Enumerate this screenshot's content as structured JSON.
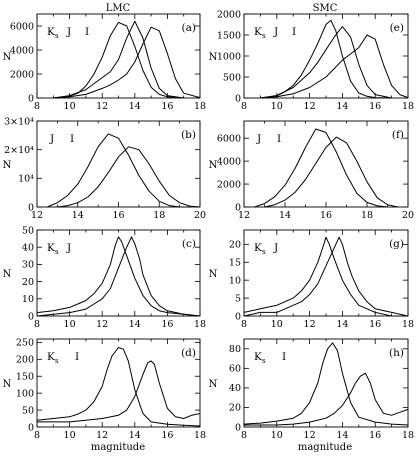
{
  "figure": {
    "columns": [
      "LMC",
      "SMC"
    ],
    "x_axis_label": "magnitude",
    "y_axis_label": "N"
  },
  "chart_data": [
    {
      "id": "a",
      "panel_label": "(a)",
      "type": "line",
      "column": "LMC",
      "bands": "K",
      "band_text": [
        "K",
        "s",
        "J",
        "I"
      ],
      "xlim": [
        8,
        18
      ],
      "xticks": [
        "8",
        "10",
        "12",
        "14",
        "16",
        "18"
      ],
      "ylim": [
        0,
        7000
      ],
      "yticks": [
        {
          "v": 0,
          "t": "0"
        },
        {
          "v": 2000,
          "t": "2000"
        },
        {
          "v": 4000,
          "t": "4000"
        },
        {
          "v": 6000,
          "t": "6000"
        }
      ],
      "series": [
        {
          "x": [
            9,
            10,
            10.5,
            11,
            11.5,
            12,
            12.5,
            13,
            13.5,
            14,
            14.5,
            15,
            15.5,
            16,
            16.5,
            17
          ],
          "y": [
            0,
            150,
            400,
            1000,
            2000,
            3400,
            5200,
            6300,
            6000,
            4300,
            2300,
            900,
            300,
            100,
            30,
            0
          ]
        },
        {
          "x": [
            9,
            10,
            11,
            11.5,
            12,
            12.5,
            13,
            13.5,
            14,
            14.5,
            15,
            15.5,
            16,
            17
          ],
          "y": [
            0,
            200,
            700,
            1200,
            1700,
            2200,
            3200,
            5000,
            6400,
            5000,
            2500,
            800,
            200,
            0
          ]
        },
        {
          "x": [
            9,
            10,
            11,
            12,
            12.5,
            13,
            13.5,
            14,
            14.5,
            15,
            15.5,
            16,
            16.5,
            17,
            18
          ],
          "y": [
            0,
            100,
            300,
            800,
            1100,
            1500,
            2000,
            3000,
            4500,
            5900,
            5600,
            3700,
            1600,
            400,
            30
          ]
        }
      ]
    },
    {
      "id": "b",
      "panel_label": "(b)",
      "type": "line",
      "column": "LMC",
      "bands": "",
      "band_text": [
        "J",
        "I"
      ],
      "xlim": [
        12,
        20
      ],
      "xticks": [
        "12",
        "14",
        "16",
        "18",
        "20"
      ],
      "ylim": [
        0,
        30000
      ],
      "yticks": [
        {
          "v": 0,
          "t": "0"
        },
        {
          "v": 10000,
          "t": "10⁴"
        },
        {
          "v": 20000,
          "t": "2×10⁴"
        },
        {
          "v": 30000,
          "t": "3×10⁴"
        }
      ],
      "series": [
        {
          "x": [
            12.5,
            13,
            13.5,
            14,
            14.5,
            15,
            15.5,
            16,
            16.5,
            17,
            17.5,
            18,
            18.5,
            19,
            19.5
          ],
          "y": [
            0,
            1500,
            4000,
            8000,
            14000,
            21000,
            25500,
            24000,
            18000,
            11000,
            5500,
            2000,
            500,
            0,
            0
          ]
        },
        {
          "x": [
            13,
            13.5,
            14,
            14.5,
            15,
            15.5,
            16,
            16.5,
            17,
            17.5,
            18,
            18.5,
            19,
            19.5,
            20
          ],
          "y": [
            0,
            500,
            1500,
            3500,
            7000,
            12000,
            17500,
            21000,
            20000,
            15000,
            9000,
            4000,
            1500,
            300,
            0
          ]
        }
      ]
    },
    {
      "id": "c",
      "panel_label": "(c)",
      "type": "line",
      "column": "LMC",
      "bands": "K",
      "band_text": [
        "K",
        "s",
        "J",
        ""
      ],
      "xlim": [
        8,
        18
      ],
      "xticks": [
        "8",
        "10",
        "12",
        "14",
        "16",
        "18"
      ],
      "ylim": [
        0,
        50
      ],
      "yticks": [
        {
          "v": 0,
          "t": "0"
        },
        {
          "v": 10,
          "t": "10"
        },
        {
          "v": 20,
          "t": "20"
        },
        {
          "v": 30,
          "t": "30"
        },
        {
          "v": 40,
          "t": "40"
        },
        {
          "v": 50,
          "t": "50"
        }
      ],
      "series": [
        {
          "x": [
            8,
            9,
            10,
            10.5,
            11,
            11.5,
            12,
            12.5,
            12.8,
            13,
            13.2,
            13.5,
            14,
            14.5,
            15,
            15.5,
            16,
            17,
            18
          ],
          "y": [
            2,
            3,
            5,
            7,
            9,
            13,
            19,
            30,
            41,
            46,
            43,
            35,
            22,
            12,
            6,
            3,
            2,
            1,
            0
          ]
        },
        {
          "x": [
            8,
            9,
            10,
            11,
            11.5,
            12,
            12.5,
            13,
            13.5,
            13.8,
            14,
            14.3,
            14.5,
            15,
            15.5,
            16,
            17,
            18
          ],
          "y": [
            0,
            1,
            2,
            4,
            7,
            10,
            16,
            28,
            40,
            46,
            42,
            33,
            24,
            12,
            6,
            3,
            1,
            0
          ]
        }
      ]
    },
    {
      "id": "d",
      "panel_label": "(d)",
      "type": "line",
      "column": "LMC",
      "bands": "K",
      "band_text": [
        "K",
        "s",
        "",
        "I"
      ],
      "xlim": [
        8,
        18
      ],
      "xticks": [
        "8",
        "10",
        "12",
        "14",
        "16",
        "18"
      ],
      "ylim": [
        0,
        260
      ],
      "yticks": [
        {
          "v": 0,
          "t": "0"
        },
        {
          "v": 50,
          "t": "50"
        },
        {
          "v": 100,
          "t": "100"
        },
        {
          "v": 150,
          "t": "150"
        },
        {
          "v": 200,
          "t": "200"
        },
        {
          "v": 250,
          "t": "250"
        }
      ],
      "series": [
        {
          "x": [
            8,
            9,
            10,
            10.5,
            11,
            11.5,
            12,
            12.3,
            12.6,
            13,
            13.3,
            13.6,
            14,
            14.5,
            15,
            16,
            17,
            18
          ],
          "y": [
            20,
            25,
            30,
            38,
            50,
            75,
            120,
            170,
            210,
            235,
            230,
            195,
            110,
            40,
            15,
            8,
            5,
            3
          ]
        },
        {
          "x": [
            8,
            9,
            10,
            11,
            12,
            13,
            13.5,
            14,
            14.5,
            14.8,
            15,
            15.2,
            15.5,
            16,
            16.5,
            17,
            17.5,
            18
          ],
          "y": [
            15,
            15,
            15,
            20,
            25,
            35,
            50,
            90,
            155,
            190,
            195,
            185,
            130,
            55,
            30,
            25,
            35,
            40
          ]
        }
      ]
    },
    {
      "id": "e",
      "panel_label": "(e)",
      "type": "line",
      "column": "SMC",
      "bands": "K",
      "band_text": [
        "K",
        "s",
        "J",
        "I"
      ],
      "xlim": [
        8,
        18
      ],
      "xticks": [
        "8",
        "10",
        "12",
        "14",
        "16",
        "18"
      ],
      "ylim": [
        0,
        2000
      ],
      "yticks": [
        {
          "v": 0,
          "t": "0"
        },
        {
          "v": 500,
          "t": "500"
        },
        {
          "v": 1000,
          "t": "1000"
        },
        {
          "v": 1500,
          "t": "1500"
        },
        {
          "v": 2000,
          "t": "2000"
        }
      ],
      "series": [
        {
          "x": [
            9,
            10,
            10.5,
            11,
            11.5,
            12,
            12.5,
            13,
            13.3,
            13.6,
            14,
            14.5,
            15,
            15.5,
            16,
            17
          ],
          "y": [
            0,
            50,
            150,
            300,
            550,
            900,
            1300,
            1750,
            1850,
            1600,
            1000,
            400,
            120,
            40,
            10,
            0
          ]
        },
        {
          "x": [
            9,
            10,
            11,
            12,
            12.5,
            13,
            13.5,
            14,
            14.5,
            15,
            15.5,
            16,
            17
          ],
          "y": [
            0,
            60,
            250,
            600,
            850,
            1150,
            1450,
            1700,
            1450,
            800,
            300,
            80,
            0
          ]
        },
        {
          "x": [
            9,
            10,
            11,
            12,
            13,
            13.5,
            14,
            14.5,
            15,
            15.5,
            16,
            16.5,
            17,
            17.5,
            18
          ],
          "y": [
            0,
            30,
            100,
            250,
            500,
            700,
            900,
            1050,
            1200,
            1500,
            1400,
            800,
            300,
            80,
            10
          ]
        }
      ]
    },
    {
      "id": "f",
      "panel_label": "(f)",
      "type": "line",
      "column": "SMC",
      "bands": "",
      "band_text": [
        "J",
        "I"
      ],
      "xlim": [
        12,
        20
      ],
      "xticks": [
        "12",
        "14",
        "16",
        "18",
        "20"
      ],
      "ylim": [
        0,
        7500
      ],
      "yticks": [
        {
          "v": 0,
          "t": "0"
        },
        {
          "v": 2000,
          "t": "2000"
        },
        {
          "v": 4000,
          "t": "4000"
        },
        {
          "v": 6000,
          "t": "6000"
        }
      ],
      "series": [
        {
          "x": [
            12.5,
            13,
            13.5,
            14,
            14.5,
            15,
            15.5,
            16,
            16.5,
            17,
            17.5,
            18,
            18.5,
            19
          ],
          "y": [
            0,
            300,
            900,
            1900,
            3400,
            5200,
            6800,
            6500,
            4800,
            2800,
            1200,
            400,
            100,
            0
          ]
        },
        {
          "x": [
            13,
            13.5,
            14,
            14.5,
            15,
            15.5,
            16,
            16.5,
            17,
            17.5,
            18,
            18.5,
            19,
            19.5
          ],
          "y": [
            0,
            200,
            600,
            1300,
            2400,
            3800,
            5200,
            6100,
            5600,
            4000,
            2200,
            800,
            200,
            0
          ]
        }
      ]
    },
    {
      "id": "g",
      "panel_label": "(g)",
      "type": "line",
      "column": "SMC",
      "bands": "K",
      "band_text": [
        "K",
        "s",
        "J",
        ""
      ],
      "xlim": [
        8,
        18
      ],
      "xticks": [
        "8",
        "10",
        "12",
        "14",
        "16",
        "18"
      ],
      "ylim": [
        0,
        24
      ],
      "yticks": [
        {
          "v": 0,
          "t": "0"
        },
        {
          "v": 5,
          "t": "5"
        },
        {
          "v": 10,
          "t": "10"
        },
        {
          "v": 15,
          "t": "15"
        },
        {
          "v": 20,
          "t": "20"
        }
      ],
      "series": [
        {
          "x": [
            8,
            9,
            10,
            10.5,
            11,
            11.5,
            12,
            12.5,
            12.8,
            13,
            13.2,
            13.5,
            14,
            14.5,
            15,
            15.5,
            16,
            17,
            18
          ],
          "y": [
            1,
            2,
            3,
            4,
            5,
            7,
            10,
            15,
            19,
            22,
            20,
            16,
            10,
            6,
            3,
            2,
            1,
            0,
            0
          ]
        },
        {
          "x": [
            8,
            9,
            10,
            11,
            11.5,
            12,
            12.5,
            13,
            13.5,
            13.8,
            14,
            14.3,
            14.6,
            15,
            15.5,
            16,
            17,
            18
          ],
          "y": [
            0,
            1,
            1,
            3,
            4,
            6,
            9,
            14,
            19,
            22,
            20,
            15,
            11,
            7,
            4,
            2,
            1,
            0
          ]
        }
      ]
    },
    {
      "id": "h",
      "panel_label": "(h)",
      "type": "line",
      "column": "SMC",
      "bands": "K",
      "band_text": [
        "K",
        "s",
        "",
        "I"
      ],
      "xlim": [
        8,
        18
      ],
      "xticks": [
        "8",
        "10",
        "12",
        "14",
        "16",
        "18"
      ],
      "ylim": [
        0,
        90
      ],
      "yticks": [
        {
          "v": 0,
          "t": "0"
        },
        {
          "v": 20,
          "t": "20"
        },
        {
          "v": 40,
          "t": "40"
        },
        {
          "v": 60,
          "t": "60"
        },
        {
          "v": 80,
          "t": "80"
        }
      ],
      "series": [
        {
          "x": [
            8,
            9,
            10,
            11,
            11.5,
            12,
            12.5,
            12.8,
            13.1,
            13.4,
            13.7,
            14,
            14.5,
            15,
            16,
            17,
            18
          ],
          "y": [
            3,
            4,
            6,
            9,
            14,
            25,
            45,
            65,
            80,
            86,
            78,
            55,
            25,
            10,
            5,
            3,
            2
          ]
        },
        {
          "x": [
            8,
            9,
            10,
            11,
            12,
            13,
            13.5,
            14,
            14.5,
            14.8,
            15.1,
            15.4,
            15.7,
            16,
            16.5,
            17,
            17.5,
            18
          ],
          "y": [
            2,
            2,
            2,
            3,
            5,
            9,
            14,
            22,
            35,
            45,
            52,
            55,
            45,
            28,
            14,
            12,
            15,
            18
          ]
        }
      ]
    }
  ]
}
